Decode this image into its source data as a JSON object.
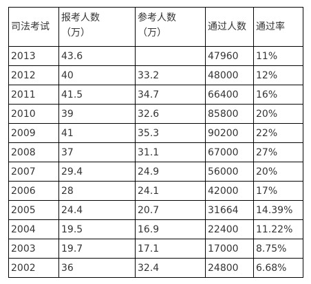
{
  "table": {
    "header": [
      [
        "司法考试"
      ],
      [
        "报考人数",
        "（万）"
      ],
      [
        "参考人数",
        "（万）"
      ],
      [
        "通过人数"
      ],
      [
        "通过率"
      ]
    ],
    "rows": [
      [
        "2013",
        "43.6",
        null,
        "47960",
        "11%"
      ],
      [
        "2012",
        "40",
        "33.2",
        "48000",
        "12%"
      ],
      [
        "2011",
        "41.5",
        "34.7",
        "66400",
        "16%"
      ],
      [
        "2010",
        "39",
        "32.6",
        "85800",
        "20%"
      ],
      [
        "2009",
        "41",
        "35.3",
        "90200",
        "22%"
      ],
      [
        "2008",
        "37",
        "31.1",
        "67000",
        "27%"
      ],
      [
        "2007",
        "29.4",
        "24.9",
        "56000",
        "20%"
      ],
      [
        "2006",
        "28",
        "24.1",
        "42000",
        "17%"
      ],
      [
        "2005",
        "24.4",
        "20.7",
        "31664",
        "14.39%"
      ],
      [
        "2004",
        "19.5",
        "16.9",
        "22400",
        "11.22%"
      ],
      [
        "2003",
        "19.7",
        "17.1",
        "17000",
        "8.75%"
      ],
      [
        "2002",
        "36",
        "32.4",
        "24800",
        "6.68%"
      ]
    ]
  }
}
